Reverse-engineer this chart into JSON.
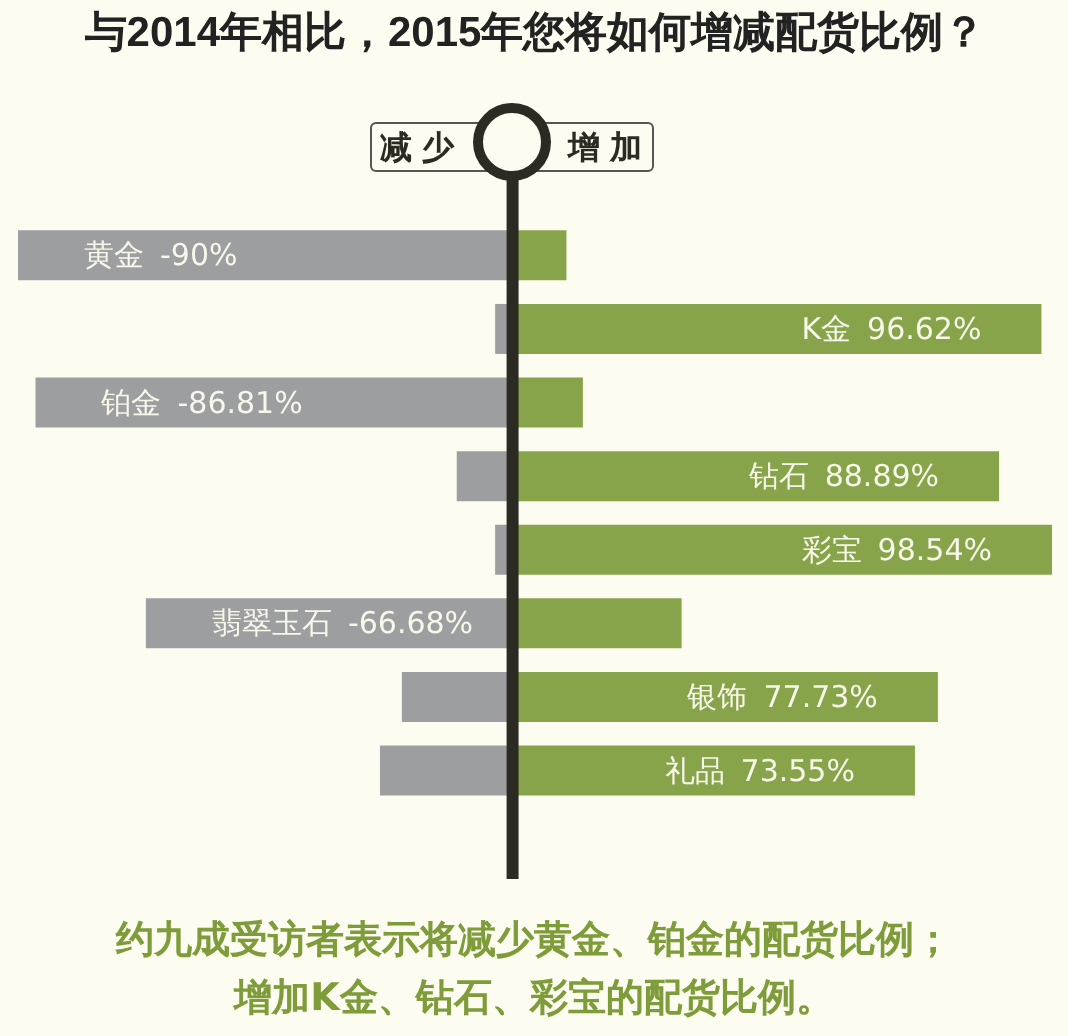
{
  "chart_data": {
    "type": "bar",
    "orientation": "horizontal",
    "stacked": true,
    "tick_labels": false,
    "title": "与2014年相比，2015年您将如何增减配货比例？",
    "categories": [
      "黄金",
      "K金",
      "铂金",
      "钻石",
      "彩宝",
      "翡翠玉石",
      "银饰",
      "礼品"
    ],
    "series": [
      {
        "name": "减少",
        "color": "#9d9ea0",
        "values": [
          -90,
          -3,
          -86.81,
          -10,
          -3,
          -66.68,
          -20,
          -24
        ],
        "value_labels": [
          "-90%",
          null,
          "-86.81%",
          null,
          null,
          "-66.68%",
          null,
          null
        ]
      },
      {
        "name": "增加",
        "color": "#88a44a",
        "values": [
          10,
          96.62,
          13,
          88.89,
          98.54,
          31,
          77.73,
          73.55
        ],
        "value_labels": [
          null,
          "96.62%",
          null,
          "88.89%",
          "98.54%",
          null,
          "77.73%",
          "73.55%"
        ]
      }
    ],
    "annotations": [
      "约九成受访者表示将减少黄金、铂金的配货比例；",
      "增加K金、钻石、彩宝的配货比例。"
    ]
  }
}
